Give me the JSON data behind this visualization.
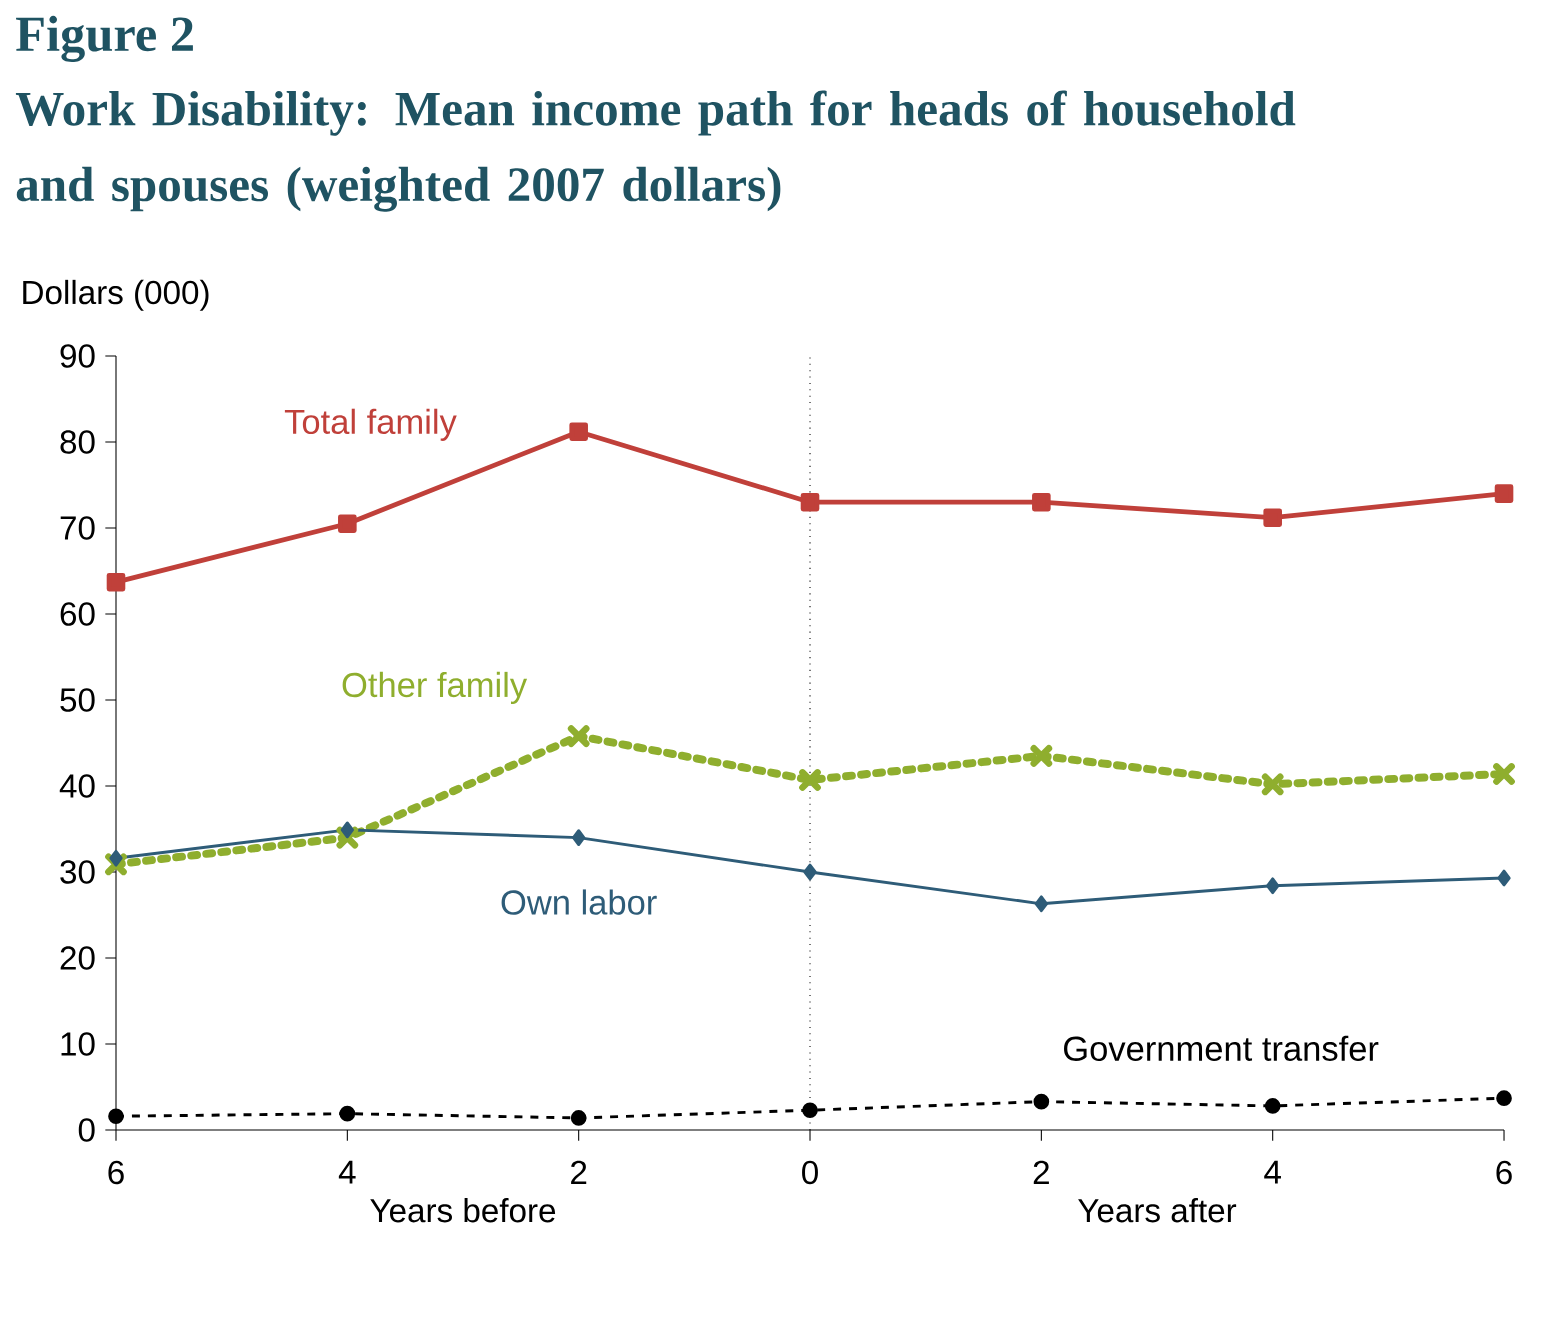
{
  "chart_data": {
    "type": "line",
    "title": "Figure 2",
    "subtitle": "Work Disability: Mean income path for heads of household and spouses (weighted 2007 dollars)",
    "ylabel": "Dollars (000)",
    "x": [
      -6,
      -4,
      -2,
      0,
      2,
      4,
      6
    ],
    "xlim": [
      -6,
      6
    ],
    "xticks": [
      {
        "value": -6,
        "label": "6"
      },
      {
        "value": -4,
        "label": "4"
      },
      {
        "value": -2,
        "label": "2"
      },
      0,
      2,
      4,
      6
    ],
    "ylim": [
      0,
      90
    ],
    "yticks": [
      0,
      10,
      20,
      30,
      40,
      50,
      60,
      70,
      80,
      90
    ],
    "series": [
      {
        "name": "Total family",
        "color": "#c0403a",
        "marker": "square",
        "line_style": "solid",
        "values": [
          63.7,
          70.5,
          81.2,
          73,
          73,
          71.2,
          74
        ]
      },
      {
        "name": "Other family",
        "color": "#8fae2e",
        "marker": "cross",
        "line_style": "dotted",
        "values": [
          30.9,
          34,
          45.8,
          40.7,
          43.5,
          40.2,
          41.4
        ]
      },
      {
        "name": "Own labor",
        "color": "#2e5c78",
        "marker": "diamond",
        "line_style": "solid",
        "values": [
          31.6,
          34.9,
          34,
          30,
          26.3,
          28.4,
          29.3
        ]
      },
      {
        "name": "Government transfer",
        "color": "#000000",
        "marker": "circle",
        "line_style": "dashed",
        "values": [
          1.6,
          1.9,
          1.4,
          2.3,
          3.3,
          2.8,
          3.7
        ]
      }
    ],
    "ref_lines": [
      {
        "axis": "x",
        "value": 0,
        "line_style": "dotted",
        "color": "#000000"
      }
    ],
    "annotations": [
      "Years before",
      "Years after"
    ]
  }
}
